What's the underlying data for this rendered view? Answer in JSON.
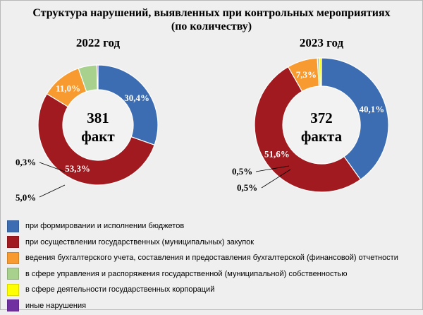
{
  "title": "Структура нарушений, выявленных  при контрольных мероприятиях\n(по количеству)",
  "colors": {
    "budget": "#3c6db2",
    "procurement": "#a01a1f",
    "accounting": "#f79a30",
    "property": "#a9d18e",
    "corporations": "#ffff00",
    "other": "#7030a0"
  },
  "chart_data": [
    {
      "type": "pie",
      "subtype": "donut",
      "title": "2022 год",
      "center_value": "381",
      "center_label": "факт",
      "series": [
        {
          "name": "при формировании и исполнении бюджетов",
          "value": 30.4,
          "label": "30,4%"
        },
        {
          "name": "при осуществлении государственных (муниципальных) закупок",
          "value": 53.3,
          "label": "53,3%"
        },
        {
          "name": "ведения бухгалтерского учета, составления и предоставления бухгалтерской (финансовой) отчетности",
          "value": 11.0,
          "label": "11,0%"
        },
        {
          "name": "в сфере управления и распоряжения государственной (муниципальной) собственностью",
          "value": 5.0,
          "label": "5,0%"
        },
        {
          "name": "в сфере деятельности государственных корпораций",
          "value": 0.0,
          "label": ""
        },
        {
          "name": "иные нарушения",
          "value": 0.3,
          "label": "0,3%"
        }
      ]
    },
    {
      "type": "pie",
      "subtype": "donut",
      "title": "2023 год",
      "center_value": "372",
      "center_label": "факта",
      "series": [
        {
          "name": "при формировании и исполнении бюджетов",
          "value": 40.1,
          "label": "40,1%"
        },
        {
          "name": "при осуществлении государственных (муниципальных) закупок",
          "value": 51.6,
          "label": "51,6%"
        },
        {
          "name": "ведения бухгалтерского учета, составления и предоставления бухгалтерской (финансовой) отчетности",
          "value": 7.3,
          "label": "7,3%"
        },
        {
          "name": "в сфере управления и распоряжения государственной (муниципальной) собственностью",
          "value": 0.5,
          "label": "0,5%"
        },
        {
          "name": "в сфере деятельности государственных корпораций",
          "value": 0.5,
          "label": "0,5%"
        },
        {
          "name": "иные нарушения",
          "value": 0.0,
          "label": ""
        }
      ]
    }
  ],
  "legend": [
    {
      "label": "при формировании и исполнении бюджетов",
      "color_key": "budget"
    },
    {
      "label": "при осуществлении государственных (муниципальных) закупок",
      "color_key": "procurement"
    },
    {
      "label": "ведения бухгалтерского учета, составления и предоставления бухгалтерской (финансовой) отчетности",
      "color_key": "accounting"
    },
    {
      "label": "в сфере управления и распоряжения государственной (муниципальной) собственностью",
      "color_key": "property"
    },
    {
      "label": "в сфере деятельности государственных корпораций",
      "color_key": "corporations"
    },
    {
      "label": "иные нарушения",
      "color_key": "other"
    }
  ]
}
